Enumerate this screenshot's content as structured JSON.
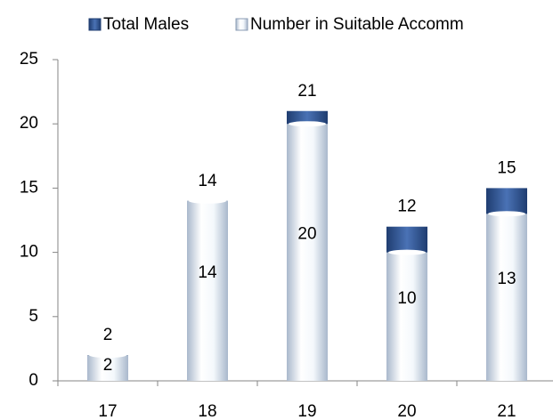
{
  "chart_data": {
    "type": "bar",
    "categories": [
      "17",
      "18",
      "19",
      "20",
      "21"
    ],
    "series": [
      {
        "name": "Total Males",
        "color": "#2f5597",
        "values": [
          2,
          14,
          21,
          12,
          15
        ]
      },
      {
        "name": "Number in Suitable Accomm",
        "color": "#dce6f2",
        "values": [
          2,
          14,
          20,
          10,
          13
        ]
      }
    ],
    "ylim": [
      0,
      25
    ],
    "yticks": [
      0,
      5,
      10,
      15,
      20,
      25
    ],
    "legend": "top"
  }
}
